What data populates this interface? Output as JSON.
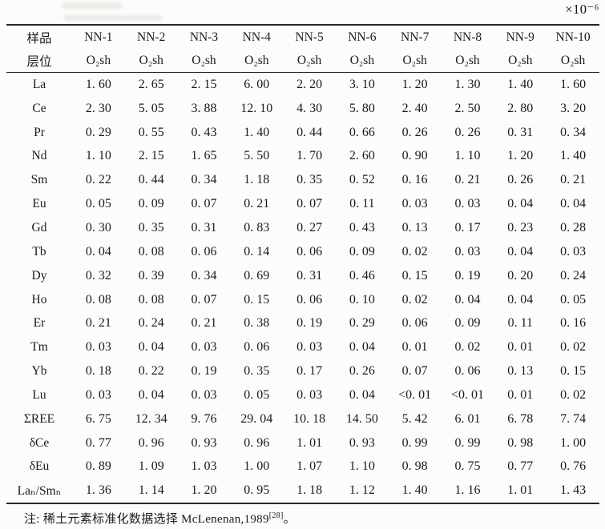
{
  "unit_label": "×10⁻⁶",
  "table": {
    "header": {
      "sample_label": "样品",
      "horizon_label": "层位",
      "samples": [
        "NN-1",
        "NN-2",
        "NN-3",
        "NN-4",
        "NN-5",
        "NN-6",
        "NN-7",
        "NN-8",
        "NN-9",
        "NN-10"
      ],
      "horizon": "O₂sh"
    },
    "rows": [
      {
        "label": "La",
        "values": [
          "1. 60",
          "2. 65",
          "2. 15",
          "6. 00",
          "2. 20",
          "3. 10",
          "1. 20",
          "1. 30",
          "1. 40",
          "1. 60"
        ]
      },
      {
        "label": "Ce",
        "values": [
          "2. 30",
          "5. 05",
          "3. 88",
          "12. 10",
          "4. 30",
          "5. 80",
          "2. 40",
          "2. 50",
          "2. 80",
          "3. 20"
        ]
      },
      {
        "label": "Pr",
        "values": [
          "0. 29",
          "0. 55",
          "0. 43",
          "1. 40",
          "0. 44",
          "0. 66",
          "0. 26",
          "0. 26",
          "0. 31",
          "0. 34"
        ]
      },
      {
        "label": "Nd",
        "values": [
          "1. 10",
          "2. 15",
          "1. 65",
          "5. 50",
          "1. 70",
          "2. 60",
          "0. 90",
          "1. 10",
          "1. 20",
          "1. 40"
        ]
      },
      {
        "label": "Sm",
        "values": [
          "0. 22",
          "0. 44",
          "0. 34",
          "1. 18",
          "0. 35",
          "0. 52",
          "0. 16",
          "0. 21",
          "0. 26",
          "0. 21"
        ]
      },
      {
        "label": "Eu",
        "values": [
          "0. 05",
          "0. 09",
          "0. 07",
          "0. 21",
          "0. 07",
          "0. 11",
          "0. 03",
          "0. 03",
          "0. 04",
          "0. 04"
        ]
      },
      {
        "label": "Gd",
        "values": [
          "0. 30",
          "0. 35",
          "0. 31",
          "0. 83",
          "0. 27",
          "0. 43",
          "0. 13",
          "0. 17",
          "0. 23",
          "0. 28"
        ]
      },
      {
        "label": "Tb",
        "values": [
          "0. 04",
          "0. 08",
          "0. 06",
          "0. 14",
          "0. 06",
          "0. 09",
          "0. 02",
          "0. 03",
          "0. 04",
          "0. 03"
        ]
      },
      {
        "label": "Dy",
        "values": [
          "0. 32",
          "0. 39",
          "0. 34",
          "0. 69",
          "0. 31",
          "0. 46",
          "0. 15",
          "0. 19",
          "0. 20",
          "0. 24"
        ]
      },
      {
        "label": "Ho",
        "values": [
          "0. 08",
          "0. 08",
          "0. 07",
          "0. 15",
          "0. 06",
          "0. 10",
          "0. 02",
          "0. 04",
          "0. 04",
          "0. 05"
        ]
      },
      {
        "label": "Er",
        "values": [
          "0. 21",
          "0. 24",
          "0. 21",
          "0. 38",
          "0. 19",
          "0. 29",
          "0. 06",
          "0. 09",
          "0. 11",
          "0. 16"
        ]
      },
      {
        "label": "Tm",
        "values": [
          "0. 03",
          "0. 04",
          "0. 03",
          "0. 06",
          "0. 03",
          "0. 04",
          "0. 01",
          "0. 02",
          "0. 01",
          "0. 02"
        ]
      },
      {
        "label": "Yb",
        "values": [
          "0. 18",
          "0. 22",
          "0. 19",
          "0. 35",
          "0. 17",
          "0. 26",
          "0. 07",
          "0. 06",
          "0. 13",
          "0. 15"
        ]
      },
      {
        "label": "Lu",
        "values": [
          "0. 03",
          "0. 04",
          "0. 03",
          "0. 05",
          "0. 03",
          "0. 04",
          "<0. 01",
          "<0. 01",
          "0. 01",
          "0. 02"
        ]
      },
      {
        "label": "ΣREE",
        "values": [
          "6. 75",
          "12. 34",
          "9. 76",
          "29. 04",
          "10. 18",
          "14. 50",
          "5. 42",
          "6. 01",
          "6. 78",
          "7. 74"
        ]
      },
      {
        "label": "δCe",
        "values": [
          "0. 77",
          "0. 96",
          "0. 93",
          "0. 96",
          "1. 01",
          "0. 93",
          "0. 99",
          "0. 99",
          "0. 98",
          "1. 00"
        ]
      },
      {
        "label": "δEu",
        "values": [
          "0. 89",
          "1. 09",
          "1. 03",
          "1. 00",
          "1. 07",
          "1. 10",
          "0. 98",
          "0. 75",
          "0. 77",
          "0. 76"
        ]
      },
      {
        "label": "Laₙ/Smₙ",
        "values": [
          "1. 36",
          "1. 14",
          "1. 20",
          "0. 95",
          "1. 18",
          "1. 12",
          "1. 40",
          "1. 16",
          "1. 01",
          "1. 43"
        ]
      }
    ]
  },
  "footnote": {
    "text": "注: 稀土元素标准化数据选择 McLenenan,1989",
    "ref": "[28]",
    "end": "。"
  }
}
